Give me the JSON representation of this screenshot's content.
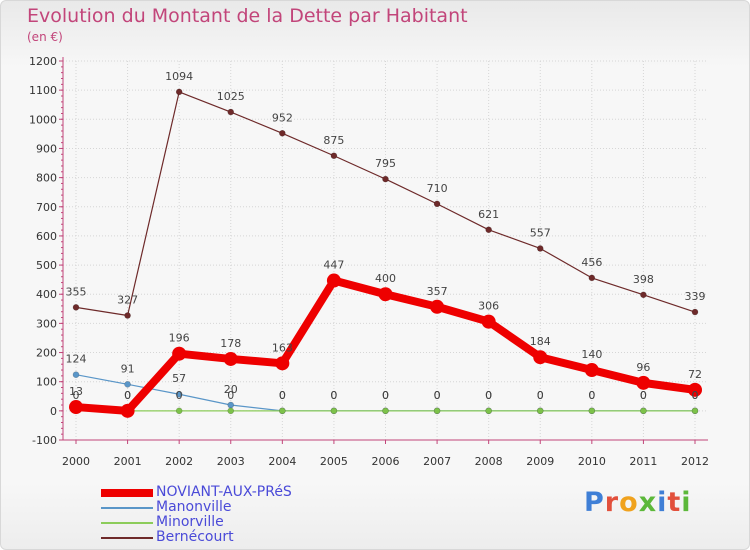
{
  "title": "Evolution du Montant de la Dette par Habitant",
  "subtitle": "(en €)",
  "brand": {
    "text": "Proxiti",
    "letter_colors": [
      "#3f7fd6",
      "#e2503c",
      "#f0a21e",
      "#5cb83a",
      "#3f7fd6",
      "#e2503c",
      "#5cb83a"
    ]
  },
  "chart_data": {
    "type": "line",
    "x": [
      "2000",
      "2001",
      "2002",
      "2003",
      "2004",
      "2005",
      "2006",
      "2007",
      "2008",
      "2009",
      "2010",
      "2011",
      "2012"
    ],
    "ylim": [
      -100,
      1200
    ],
    "yticks": [
      "-100",
      "0",
      "100",
      "200",
      "300",
      "400",
      "500",
      "600",
      "700",
      "800",
      "900",
      "1000",
      "1100",
      "1200"
    ],
    "grid": true,
    "legend_position": "bottom-left",
    "series": [
      {
        "name": "NOVIANT-AUX-PRéS",
        "color": "#ee0000",
        "values": [
          13,
          0,
          196,
          178,
          163,
          447,
          400,
          357,
          306,
          184,
          140,
          96,
          72
        ],
        "labels": [
          "13",
          "0",
          "196",
          "178",
          "163",
          "447",
          "400",
          "357",
          "306",
          "184",
          "140",
          "96",
          "72"
        ]
      },
      {
        "name": "Manonville",
        "color": "#5a96c8",
        "values": [
          124,
          91,
          57,
          20,
          0,
          0,
          0,
          0,
          0,
          0,
          0,
          0,
          0
        ],
        "labels": [
          "124",
          "91",
          "57",
          "20",
          "0",
          "0",
          "0",
          "0",
          "0",
          "0",
          "0",
          "0",
          "0"
        ]
      },
      {
        "name": "Minorville",
        "color": "#8ccc5a",
        "values": [
          0,
          0,
          0,
          0,
          0,
          0,
          0,
          0,
          0,
          0,
          0,
          0,
          0
        ],
        "labels": [
          "0",
          "0",
          "0",
          "0",
          "0",
          "0",
          "0",
          "0",
          "0",
          "0",
          "0",
          "0",
          "0"
        ]
      },
      {
        "name": "Bernécourt",
        "color": "#6e2a2a",
        "values": [
          355,
          327,
          1094,
          1025,
          952,
          875,
          795,
          710,
          621,
          557,
          456,
          398,
          339
        ],
        "labels": [
          "355",
          "327",
          "1094",
          "1025",
          "952",
          "875",
          "795",
          "710",
          "621",
          "557",
          "456",
          "398",
          "339"
        ]
      }
    ]
  }
}
